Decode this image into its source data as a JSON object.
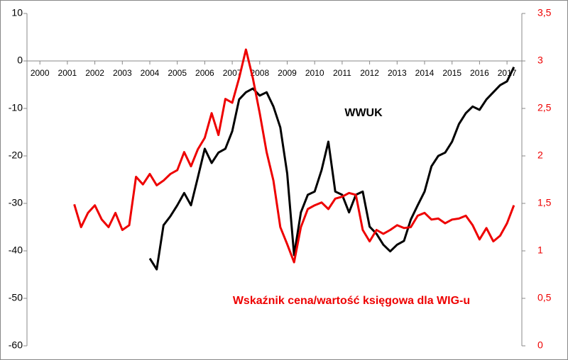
{
  "chart_data": {
    "type": "line",
    "x": [
      2001.25,
      2001.5,
      2001.75,
      2002,
      2002.25,
      2002.5,
      2002.75,
      2003,
      2003.25,
      2003.5,
      2003.75,
      2004,
      2004.25,
      2004.5,
      2004.75,
      2005,
      2005.25,
      2005.5,
      2005.75,
      2006,
      2006.25,
      2006.5,
      2006.75,
      2007,
      2007.25,
      2007.5,
      2007.75,
      2008,
      2008.25,
      2008.5,
      2008.75,
      2009,
      2009.25,
      2009.5,
      2009.75,
      2010,
      2010.25,
      2010.5,
      2010.75,
      2011,
      2011.25,
      2011.5,
      2011.75,
      2012,
      2012.25,
      2012.5,
      2012.75,
      2013,
      2013.25,
      2013.5,
      2013.75,
      2014,
      2014.25,
      2014.5,
      2014.75,
      2015,
      2015.25,
      2015.5,
      2015.75,
      2016,
      2016.25,
      2016.5,
      2016.75,
      2017,
      2017.25
    ],
    "series": [
      {
        "name": "WWUK",
        "color": "#000000",
        "axis": "y",
        "values": [
          null,
          null,
          null,
          null,
          null,
          null,
          null,
          null,
          null,
          null,
          null,
          -41.6,
          -43.9,
          -34.6,
          -32.7,
          -30.4,
          -27.8,
          -30.4,
          -24.5,
          -18.5,
          -21.5,
          -19.3,
          -18.5,
          -14.8,
          -8.1,
          -6.6,
          -5.8,
          -7.3,
          -6.6,
          -9.6,
          -14.0,
          -23.7,
          -40.9,
          -31.9,
          -28.2,
          -27.5,
          -23.0,
          -17.0,
          -27.5,
          -28.2,
          -31.9,
          -28.2,
          -27.5,
          -34.9,
          -36.4,
          -38.7,
          -40.1,
          -38.7,
          -37.9,
          -33.4,
          -30.4,
          -27.5,
          -22.2,
          -20.0,
          -19.3,
          -17.0,
          -13.3,
          -11.0,
          -9.6,
          -10.3,
          -8.1,
          -6.6,
          -5.1,
          -4.3,
          -1.3
        ]
      },
      {
        "name": "Wskaźnik cena/wartość księgowa dla WIG-u",
        "color": "#ee0000",
        "axis": "y2",
        "values": [
          1.49,
          1.25,
          1.4,
          1.48,
          1.33,
          1.25,
          1.4,
          1.22,
          1.27,
          1.78,
          1.7,
          1.81,
          1.69,
          1.74,
          1.81,
          1.85,
          2.04,
          1.89,
          2.07,
          2.19,
          2.45,
          2.22,
          2.6,
          2.56,
          2.82,
          3.12,
          2.82,
          2.45,
          2.04,
          1.74,
          1.25,
          1.07,
          0.88,
          1.25,
          1.44,
          1.48,
          1.51,
          1.44,
          1.55,
          1.57,
          1.61,
          1.59,
          1.22,
          1.1,
          1.22,
          1.18,
          1.22,
          1.27,
          1.24,
          1.25,
          1.37,
          1.4,
          1.33,
          1.34,
          1.29,
          1.33,
          1.34,
          1.37,
          1.27,
          1.12,
          1.24,
          1.1,
          1.16,
          1.29,
          1.48
        ]
      }
    ],
    "xlim": [
      1999.53,
      2017.54
    ],
    "xticks": [
      2000,
      2001,
      2002,
      2003,
      2004,
      2005,
      2006,
      2007,
      2008,
      2009,
      2010,
      2011,
      2012,
      2013,
      2014,
      2015,
      2016,
      2017
    ],
    "ylim": [
      -60,
      10
    ],
    "yticks": [
      -60,
      -50,
      -40,
      -30,
      -20,
      -10,
      0,
      10
    ],
    "y2lim": [
      0,
      3.5
    ],
    "y2ticks": [
      0,
      {
        "value": 0.5,
        "label": "0,5"
      },
      1,
      {
        "value": 1.5,
        "label": "1,5"
      },
      2,
      {
        "value": 2.5,
        "label": "2,5"
      },
      3,
      {
        "value": 3.5,
        "label": "3,5"
      }
    ],
    "y2color": "#ee0000",
    "grid": false
  }
}
